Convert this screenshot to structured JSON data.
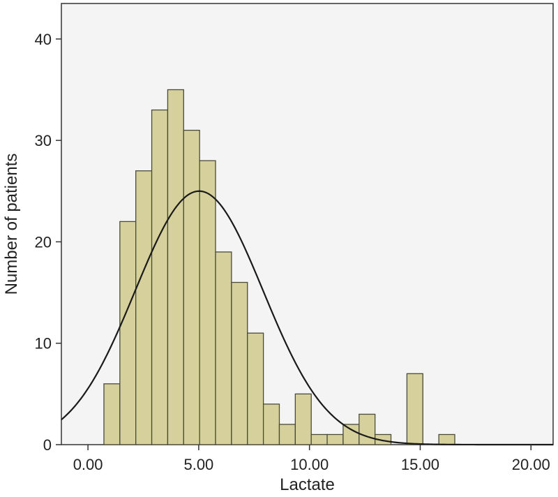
{
  "chart_data": {
    "type": "bar",
    "subtype": "histogram",
    "xlabel": "Lactate",
    "ylabel": "Number of patients",
    "xlim": [
      -1.2,
      21.0
    ],
    "ylim": [
      0,
      43.5
    ],
    "x_ticks": [
      0,
      5,
      10,
      15,
      20
    ],
    "x_tick_labels": [
      "0.00",
      "5.00",
      "10.00",
      "15.00",
      "20.00"
    ],
    "y_ticks": [
      0,
      10,
      20,
      30,
      40
    ],
    "y_tick_labels": [
      "0",
      "10",
      "20",
      "30",
      "40"
    ],
    "grid": false,
    "bin_width": 0.72,
    "bins": [
      {
        "start": 0.72,
        "count": 6
      },
      {
        "start": 1.44,
        "count": 22
      },
      {
        "start": 2.16,
        "count": 27
      },
      {
        "start": 2.88,
        "count": 33
      },
      {
        "start": 3.6,
        "count": 35
      },
      {
        "start": 4.32,
        "count": 31
      },
      {
        "start": 5.04,
        "count": 28
      },
      {
        "start": 5.76,
        "count": 19
      },
      {
        "start": 6.48,
        "count": 16
      },
      {
        "start": 7.2,
        "count": 11
      },
      {
        "start": 7.92,
        "count": 4
      },
      {
        "start": 8.64,
        "count": 2
      },
      {
        "start": 9.36,
        "count": 5
      },
      {
        "start": 10.08,
        "count": 1
      },
      {
        "start": 10.8,
        "count": 1
      },
      {
        "start": 11.52,
        "count": 2
      },
      {
        "start": 12.24,
        "count": 3
      },
      {
        "start": 12.96,
        "count": 1
      },
      {
        "start": 14.4,
        "count": 7
      },
      {
        "start": 15.84,
        "count": 1
      }
    ],
    "normal_curve": {
      "mean": 5.02,
      "sd": 2.89,
      "peak": 25.0
    },
    "colors": {
      "bar_fill": "#d6d19c",
      "bar_stroke": "#4a4a3a",
      "plot_background": "#f4f4f4",
      "curve": "#1a1a1a"
    }
  }
}
